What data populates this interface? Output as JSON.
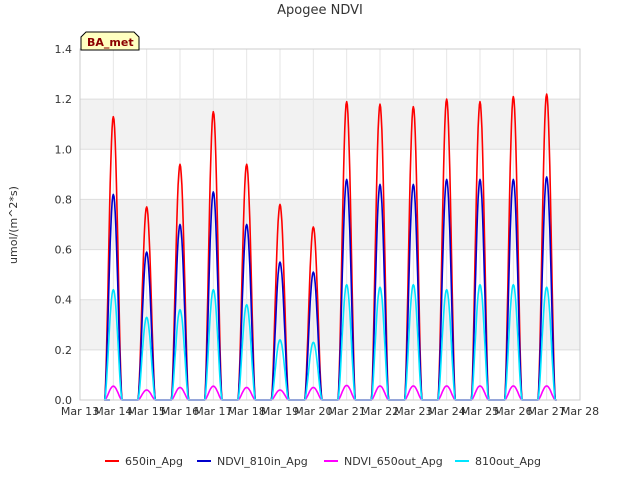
{
  "chart_data": {
    "type": "line",
    "title": "Apogee NDVI",
    "ylabel": "umol/(m^2*s)",
    "xlabel": "",
    "ylim": [
      0.0,
      1.4
    ],
    "xlim": [
      13,
      28
    ],
    "grid": true,
    "legend_position": "bottom",
    "badge": "BA_met",
    "x_ticks": [
      "Mar 13",
      "Mar 14",
      "Mar 15",
      "Mar 16",
      "Mar 17",
      "Mar 18",
      "Mar 19",
      "Mar 20",
      "Mar 21",
      "Mar 22",
      "Mar 23",
      "Mar 24",
      "Mar 25",
      "Mar 26",
      "Mar 27",
      "Mar 28"
    ],
    "y_ticks": [
      "0.0",
      "0.2",
      "0.4",
      "0.6",
      "0.8",
      "1.0",
      "1.2",
      "1.4"
    ],
    "series": [
      {
        "name": "650in_Apg",
        "color": "#ff0000",
        "daily_peaks": [
          [
            14.0,
            1.13
          ],
          [
            15.0,
            0.77
          ],
          [
            16.0,
            0.94
          ],
          [
            17.0,
            1.15
          ],
          [
            18.0,
            0.94
          ],
          [
            19.0,
            0.78
          ],
          [
            20.0,
            0.69
          ],
          [
            21.0,
            1.19
          ],
          [
            22.0,
            1.18
          ],
          [
            23.0,
            1.17
          ],
          [
            24.0,
            1.2
          ],
          [
            25.0,
            1.19
          ],
          [
            26.0,
            1.21
          ],
          [
            27.0,
            1.22
          ]
        ]
      },
      {
        "name": "NDVI_810in_Apg",
        "color": "#0000cc",
        "daily_peaks": [
          [
            14.0,
            0.82
          ],
          [
            15.0,
            0.59
          ],
          [
            16.0,
            0.7
          ],
          [
            17.0,
            0.83
          ],
          [
            18.0,
            0.7
          ],
          [
            19.0,
            0.55
          ],
          [
            20.0,
            0.51
          ],
          [
            21.0,
            0.88
          ],
          [
            22.0,
            0.86
          ],
          [
            23.0,
            0.86
          ],
          [
            24.0,
            0.88
          ],
          [
            25.0,
            0.88
          ],
          [
            26.0,
            0.88
          ],
          [
            27.0,
            0.89
          ]
        ]
      },
      {
        "name": "NDVI_650out_Apg",
        "color": "#ff00ff",
        "daily_peaks": [
          [
            14.0,
            0.055
          ],
          [
            15.0,
            0.04
          ],
          [
            16.0,
            0.05
          ],
          [
            17.0,
            0.055
          ],
          [
            18.0,
            0.05
          ],
          [
            19.0,
            0.04
          ],
          [
            20.0,
            0.05
          ],
          [
            21.0,
            0.058
          ],
          [
            22.0,
            0.056
          ],
          [
            23.0,
            0.056
          ],
          [
            24.0,
            0.056
          ],
          [
            25.0,
            0.056
          ],
          [
            26.0,
            0.056
          ],
          [
            27.0,
            0.056
          ]
        ]
      },
      {
        "name": "810out_Apg",
        "color": "#00e5ff",
        "daily_peaks": [
          [
            14.0,
            0.44
          ],
          [
            15.0,
            0.33
          ],
          [
            16.0,
            0.36
          ],
          [
            17.0,
            0.44
          ],
          [
            18.0,
            0.38
          ],
          [
            19.0,
            0.24
          ],
          [
            20.0,
            0.23
          ],
          [
            21.0,
            0.46
          ],
          [
            22.0,
            0.45
          ],
          [
            23.0,
            0.46
          ],
          [
            24.0,
            0.44
          ],
          [
            25.0,
            0.46
          ],
          [
            26.0,
            0.46
          ],
          [
            27.0,
            0.45
          ]
        ]
      }
    ]
  }
}
